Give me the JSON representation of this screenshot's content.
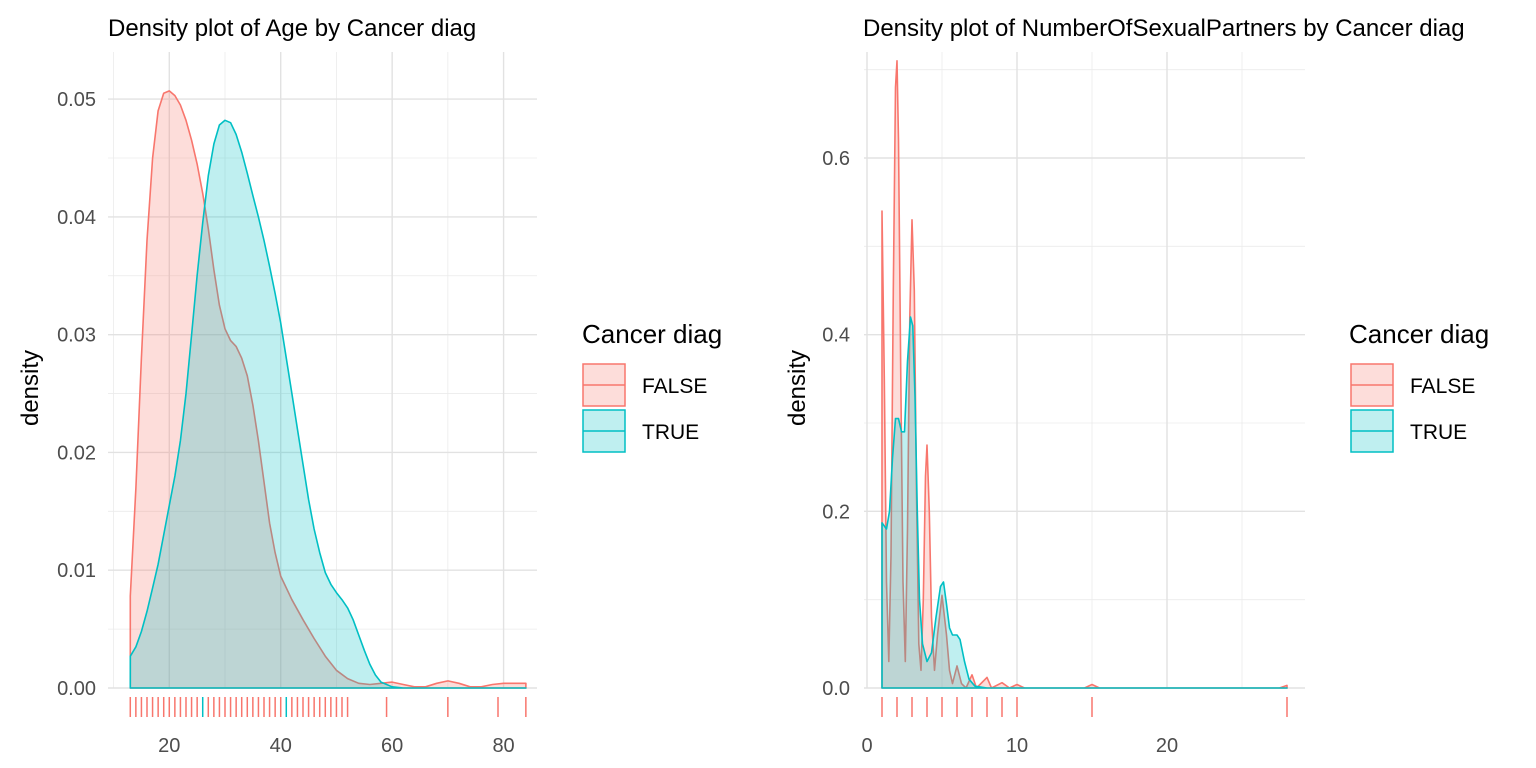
{
  "chart_data": [
    {
      "type": "area",
      "title": "Density plot of Age by Cancer diag",
      "xlabel": "",
      "ylabel": "density",
      "xlim": [
        9,
        86
      ],
      "ylim": [
        0,
        0.054
      ],
      "x_ticks": [
        20,
        40,
        60,
        80
      ],
      "y_ticks": [
        0.0,
        0.01,
        0.02,
        0.03,
        0.04,
        0.05
      ],
      "y_tick_labels": [
        "0.00",
        "0.01",
        "0.02",
        "0.03",
        "0.04",
        "0.05"
      ],
      "grid": true,
      "legend": {
        "title": "Cancer diag",
        "position": "right",
        "entries": [
          "FALSE",
          "TRUE"
        ]
      },
      "series": [
        {
          "name": "FALSE",
          "color": "#F8766D",
          "points": [
            [
              13,
              0.0078
            ],
            [
              14,
              0.017
            ],
            [
              15,
              0.028
            ],
            [
              16,
              0.038
            ],
            [
              17,
              0.045
            ],
            [
              18,
              0.049
            ],
            [
              19,
              0.0505
            ],
            [
              20,
              0.0507
            ],
            [
              21,
              0.0503
            ],
            [
              22,
              0.0495
            ],
            [
              23,
              0.0482
            ],
            [
              24,
              0.0465
            ],
            [
              25,
              0.0445
            ],
            [
              26,
              0.042
            ],
            [
              27,
              0.039
            ],
            [
              28,
              0.0355
            ],
            [
              29,
              0.0325
            ],
            [
              30,
              0.0305
            ],
            [
              31,
              0.0295
            ],
            [
              32,
              0.029
            ],
            [
              33,
              0.028
            ],
            [
              34,
              0.0265
            ],
            [
              35,
              0.024
            ],
            [
              36,
              0.021
            ],
            [
              37,
              0.0175
            ],
            [
              38,
              0.014
            ],
            [
              39,
              0.0115
            ],
            [
              40,
              0.0095
            ],
            [
              42,
              0.0075
            ],
            [
              44,
              0.0058
            ],
            [
              46,
              0.0042
            ],
            [
              48,
              0.0027
            ],
            [
              50,
              0.0015
            ],
            [
              52,
              0.0008
            ],
            [
              54,
              0.0004
            ],
            [
              56,
              0.0003
            ],
            [
              58,
              0.0004
            ],
            [
              60,
              0.0005
            ],
            [
              62,
              0.0003
            ],
            [
              64,
              0.0001
            ],
            [
              66,
              0.0001
            ],
            [
              68,
              0.0004
            ],
            [
              70,
              0.0006
            ],
            [
              72,
              0.0004
            ],
            [
              74,
              0.0001
            ],
            [
              76,
              0.0001
            ],
            [
              78,
              0.0003
            ],
            [
              80,
              0.0004
            ],
            [
              82,
              0.0004
            ],
            [
              84,
              0.0004
            ]
          ]
        },
        {
          "name": "TRUE",
          "color": "#00BFC4",
          "points": [
            [
              13,
              0.0027
            ],
            [
              14,
              0.0035
            ],
            [
              15,
              0.0048
            ],
            [
              16,
              0.0065
            ],
            [
              17,
              0.0085
            ],
            [
              18,
              0.0105
            ],
            [
              19,
              0.013
            ],
            [
              20,
              0.0155
            ],
            [
              21,
              0.018
            ],
            [
              22,
              0.021
            ],
            [
              23,
              0.025
            ],
            [
              24,
              0.03
            ],
            [
              25,
              0.035
            ],
            [
              26,
              0.0395
            ],
            [
              27,
              0.0435
            ],
            [
              28,
              0.0462
            ],
            [
              29,
              0.0478
            ],
            [
              30,
              0.0482
            ],
            [
              31,
              0.048
            ],
            [
              32,
              0.047
            ],
            [
              33,
              0.0455
            ],
            [
              34,
              0.0437
            ],
            [
              35,
              0.0418
            ],
            [
              36,
              0.04
            ],
            [
              37,
              0.038
            ],
            [
              38,
              0.0358
            ],
            [
              39,
              0.0335
            ],
            [
              40,
              0.031
            ],
            [
              41,
              0.028
            ],
            [
              42,
              0.025
            ],
            [
              43,
              0.022
            ],
            [
              44,
              0.019
            ],
            [
              45,
              0.016
            ],
            [
              46,
              0.0135
            ],
            [
              47,
              0.0115
            ],
            [
              48,
              0.0098
            ],
            [
              49,
              0.0088
            ],
            [
              50,
              0.0081
            ],
            [
              51,
              0.0075
            ],
            [
              52,
              0.0068
            ],
            [
              53,
              0.0058
            ],
            [
              54,
              0.0045
            ],
            [
              55,
              0.0032
            ],
            [
              56,
              0.002
            ],
            [
              57,
              0.0011
            ],
            [
              58,
              0.0005
            ],
            [
              60,
              0.0001
            ],
            [
              62,
              0.0
            ],
            [
              66,
              0.0
            ],
            [
              70,
              0.0
            ],
            [
              75,
              0.0
            ],
            [
              80,
              0.0
            ],
            [
              84,
              0.0
            ]
          ]
        }
      ],
      "rug": {
        "FALSE": [
          13,
          14,
          15,
          16,
          17,
          18,
          19,
          20,
          21,
          22,
          23,
          24,
          25,
          27,
          28,
          29,
          30,
          31,
          32,
          33,
          34,
          35,
          36,
          37,
          38,
          39,
          40,
          42,
          43,
          44,
          45,
          46,
          47,
          48,
          49,
          50,
          51,
          52,
          59,
          70,
          79,
          84
        ],
        "TRUE": [
          26,
          41
        ]
      }
    },
    {
      "type": "area",
      "title": "Density plot of NumberOfSexualPartners by Cancer diag",
      "xlabel": "",
      "ylabel": "density",
      "xlim": [
        -0.2,
        29.2
      ],
      "ylim": [
        0,
        0.72
      ],
      "x_ticks": [
        0,
        10,
        20
      ],
      "y_ticks": [
        0.0,
        0.2,
        0.4,
        0.6
      ],
      "y_tick_labels": [
        "0.0",
        "0.2",
        "0.4",
        "0.6"
      ],
      "grid": true,
      "legend": {
        "title": "Cancer diag",
        "position": "right",
        "entries": [
          "FALSE",
          "TRUE"
        ]
      },
      "series": [
        {
          "name": "FALSE",
          "color": "#F8766D",
          "points": [
            [
              1.0,
              0.54
            ],
            [
              1.15,
              0.35
            ],
            [
              1.3,
              0.12
            ],
            [
              1.45,
              0.03
            ],
            [
              1.6,
              0.15
            ],
            [
              1.75,
              0.45
            ],
            [
              1.9,
              0.68
            ],
            [
              2.0,
              0.71
            ],
            [
              2.1,
              0.62
            ],
            [
              2.25,
              0.35
            ],
            [
              2.4,
              0.12
            ],
            [
              2.55,
              0.03
            ],
            [
              2.7,
              0.18
            ],
            [
              2.85,
              0.42
            ],
            [
              3.0,
              0.53
            ],
            [
              3.15,
              0.45
            ],
            [
              3.3,
              0.22
            ],
            [
              3.45,
              0.05
            ],
            [
              3.6,
              0.02
            ],
            [
              3.75,
              0.1
            ],
            [
              3.9,
              0.24
            ],
            [
              4.0,
              0.275
            ],
            [
              4.15,
              0.2
            ],
            [
              4.3,
              0.08
            ],
            [
              4.5,
              0.02
            ],
            [
              4.7,
              0.06
            ],
            [
              5.0,
              0.105
            ],
            [
              5.3,
              0.06
            ],
            [
              5.5,
              0.02
            ],
            [
              5.7,
              0.005
            ],
            [
              6.0,
              0.025
            ],
            [
              6.3,
              0.005
            ],
            [
              6.6,
              0.0
            ],
            [
              7.0,
              0.015
            ],
            [
              7.3,
              0.0
            ],
            [
              8.0,
              0.012
            ],
            [
              8.3,
              0.0
            ],
            [
              9.0,
              0.006
            ],
            [
              9.5,
              0.0
            ],
            [
              10.0,
              0.004
            ],
            [
              10.5,
              0.0
            ],
            [
              12,
              0.0
            ],
            [
              14.5,
              0.0
            ],
            [
              15.0,
              0.004
            ],
            [
              15.5,
              0.0
            ],
            [
              20,
              0.0
            ],
            [
              25,
              0.0
            ],
            [
              27.5,
              0.0
            ],
            [
              28.0,
              0.003
            ]
          ]
        },
        {
          "name": "TRUE",
          "color": "#00BFC4",
          "points": [
            [
              1.0,
              0.187
            ],
            [
              1.3,
              0.18
            ],
            [
              1.5,
              0.2
            ],
            [
              1.7,
              0.26
            ],
            [
              1.9,
              0.305
            ],
            [
              2.1,
              0.305
            ],
            [
              2.3,
              0.29
            ],
            [
              2.5,
              0.29
            ],
            [
              2.7,
              0.37
            ],
            [
              2.9,
              0.42
            ],
            [
              3.05,
              0.41
            ],
            [
              3.2,
              0.33
            ],
            [
              3.35,
              0.2
            ],
            [
              3.5,
              0.1
            ],
            [
              3.7,
              0.05
            ],
            [
              4.0,
              0.03
            ],
            [
              4.3,
              0.04
            ],
            [
              4.6,
              0.08
            ],
            [
              4.9,
              0.115
            ],
            [
              5.1,
              0.12
            ],
            [
              5.3,
              0.095
            ],
            [
              5.5,
              0.068
            ],
            [
              5.7,
              0.06
            ],
            [
              6.0,
              0.06
            ],
            [
              6.2,
              0.055
            ],
            [
              6.5,
              0.03
            ],
            [
              6.8,
              0.01
            ],
            [
              7.2,
              0.002
            ],
            [
              8,
              0.0
            ],
            [
              10,
              0.0
            ],
            [
              15,
              0.0
            ],
            [
              20,
              0.0
            ],
            [
              25,
              0.0
            ],
            [
              28,
              0.0
            ]
          ]
        }
      ],
      "rug": {
        "FALSE": [
          1,
          2,
          3,
          4,
          5,
          6,
          7,
          8,
          9,
          10,
          15,
          28
        ],
        "TRUE": []
      }
    }
  ]
}
